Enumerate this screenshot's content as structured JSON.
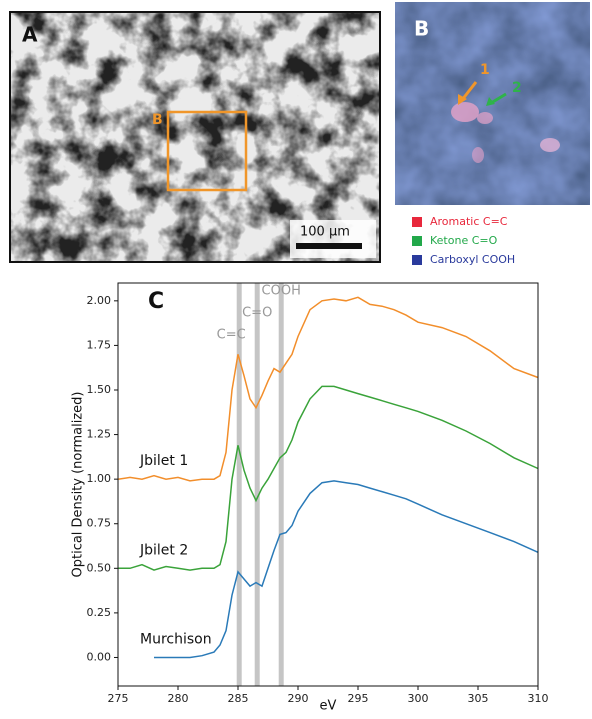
{
  "panel_a": {
    "label": "A",
    "box_label": "B",
    "scale_bar": "100 µm"
  },
  "panel_b": {
    "label": "B",
    "arrows": [
      {
        "label": "1",
        "color": "#f0962a"
      },
      {
        "label": "2",
        "color": "#2fb34a"
      }
    ],
    "legend": [
      {
        "name": "Aromatic C=C",
        "color": "#e8283c"
      },
      {
        "name": "Ketone C=O",
        "color": "#22a84a"
      },
      {
        "name": "Carboxyl COOH",
        "color": "#2a3a9c"
      }
    ]
  },
  "chart_data": {
    "type": "line",
    "label": "C",
    "xlabel": "eV",
    "ylabel": "Optical Density (normalized)",
    "xlim": [
      275,
      310
    ],
    "xticks": [
      275,
      280,
      285,
      290,
      295,
      300,
      305,
      310
    ],
    "ylim": [
      -0.16,
      2.1
    ],
    "yticks": [
      {
        "value": 0,
        "label": "0.00"
      },
      {
        "value": 0.25,
        "label": "0.25"
      },
      {
        "value": 0.5,
        "label": "0.50"
      },
      {
        "value": 0.75,
        "label": "0.75"
      },
      {
        "value": 1,
        "label": "1.00"
      },
      {
        "value": 1.25,
        "label": "1.25"
      },
      {
        "value": 1.5,
        "label": "1.50"
      },
      {
        "value": 1.75,
        "label": "1.75"
      },
      {
        "value": 2,
        "label": "2.00"
      }
    ],
    "bands": [
      {
        "label": "C=C",
        "x": 285.1
      },
      {
        "label": "C=O",
        "x": 286.6
      },
      {
        "label": "COOH",
        "x": 288.6
      }
    ],
    "x": [
      275,
      276,
      277,
      278,
      279,
      280,
      281,
      282,
      283,
      283.5,
      284,
      284.5,
      285,
      285.5,
      286,
      286.5,
      287,
      287.5,
      288,
      288.5,
      289,
      289.5,
      290,
      291,
      292,
      293,
      294,
      295,
      296,
      297,
      298,
      299,
      300,
      302,
      304,
      306,
      308,
      310
    ],
    "series": [
      {
        "name": "Jbilet 1",
        "color": "#f28e2b",
        "values": [
          1.0,
          1.01,
          1.0,
          1.02,
          1.0,
          1.01,
          0.99,
          1.0,
          1.0,
          1.02,
          1.15,
          1.5,
          1.7,
          1.58,
          1.45,
          1.4,
          1.47,
          1.55,
          1.62,
          1.6,
          1.65,
          1.7,
          1.8,
          1.95,
          2.0,
          2.01,
          2.0,
          2.02,
          1.98,
          1.97,
          1.95,
          1.92,
          1.88,
          1.85,
          1.8,
          1.72,
          1.62,
          1.57
        ]
      },
      {
        "name": "Jbilet 2",
        "color": "#3aa33a",
        "values": [
          0.5,
          0.5,
          0.52,
          0.49,
          0.51,
          0.5,
          0.49,
          0.5,
          0.5,
          0.52,
          0.65,
          1.0,
          1.19,
          1.05,
          0.95,
          0.88,
          0.95,
          1.0,
          1.06,
          1.12,
          1.15,
          1.22,
          1.32,
          1.45,
          1.52,
          1.52,
          1.5,
          1.48,
          1.46,
          1.44,
          1.42,
          1.4,
          1.38,
          1.33,
          1.27,
          1.2,
          1.12,
          1.06
        ]
      },
      {
        "name": "Murchison",
        "color": "#2a7ab8",
        "values": [
          null,
          null,
          null,
          0.0,
          0.0,
          0.0,
          0.0,
          0.01,
          0.03,
          0.07,
          0.15,
          0.35,
          0.48,
          0.44,
          0.4,
          0.42,
          0.4,
          0.5,
          0.6,
          0.69,
          0.7,
          0.74,
          0.82,
          0.92,
          0.98,
          0.99,
          0.98,
          0.97,
          0.95,
          0.93,
          0.91,
          0.89,
          0.86,
          0.8,
          0.75,
          0.7,
          0.65,
          0.59
        ]
      }
    ]
  }
}
